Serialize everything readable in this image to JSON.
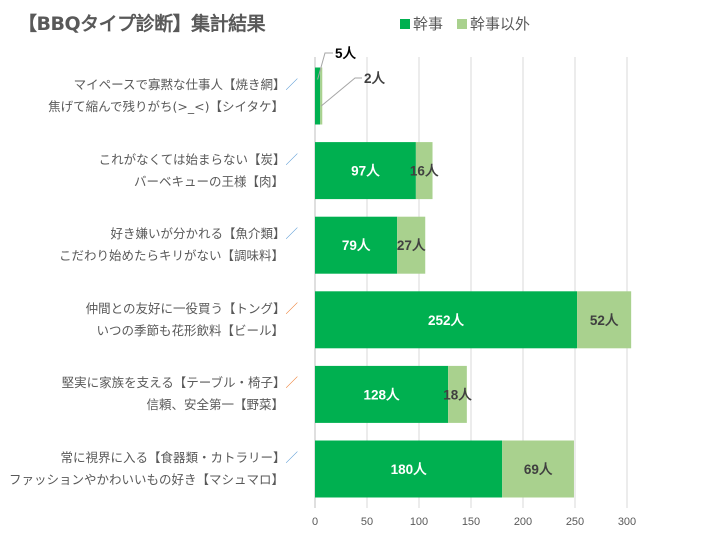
{
  "chart_data": {
    "type": "bar",
    "orientation": "horizontal",
    "stacked": true,
    "title": "【BBQタイプ診断】集計結果",
    "legend_position": "top-right",
    "unit_suffix": "人",
    "categories": [
      {
        "line1": "マイペースで寡黙な仕事人【焼き網】",
        "sep": "／",
        "sep_color": "#5b9bd5",
        "line2": "焦げて縮んで残りがち(>_<)【シイタケ】"
      },
      {
        "line1": "これがなくては始まらない【炭】",
        "sep": "／",
        "sep_color": "#5b9bd5",
        "line2": "バーベキューの王様【肉】"
      },
      {
        "line1": "好き嫌いが分かれる【魚介類】",
        "sep": "／",
        "sep_color": "#5b9bd5",
        "line2": "こだわり始めたらキリがない【調味料】"
      },
      {
        "line1": "仲間との友好に一役買う【トング】",
        "sep": "／",
        "sep_color": "#ed7d31",
        "line2": "いつの季節も花形飲料【ビール】"
      },
      {
        "line1": "堅実に家族を支える【テーブル・椅子】",
        "sep": "／",
        "sep_color": "#ed7d31",
        "line2": "信頼、安全第一【野菜】"
      },
      {
        "line1": "常に視界に入る【食器類・カトラリー】",
        "sep": "／",
        "sep_color": "#5b9bd5",
        "line2": "ファッションやかわいいもの好き【マシュマロ】"
      }
    ],
    "series": [
      {
        "name": "幹事",
        "color": "#00b050",
        "values": [
          5,
          97,
          79,
          252,
          128,
          180
        ],
        "labels": [
          "5人",
          "97人",
          "79人",
          "252人",
          "128人",
          "180人"
        ]
      },
      {
        "name": "幹事以外",
        "color": "#a9d18e",
        "values": [
          2,
          16,
          27,
          52,
          18,
          69
        ],
        "labels": [
          "2人",
          "16人",
          "27人",
          "52人",
          "18人",
          "69人"
        ]
      }
    ],
    "xlim": [
      0,
      300
    ],
    "xticks": [
      "0",
      "50",
      "100",
      "150",
      "200",
      "250",
      "300"
    ],
    "grid": true
  }
}
